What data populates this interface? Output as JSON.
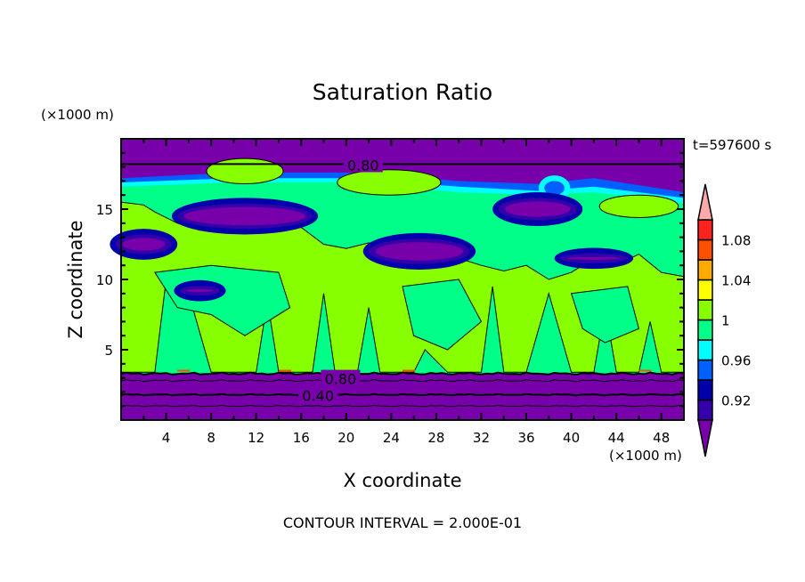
{
  "chart_data": {
    "type": "heatmap",
    "title": "Saturation Ratio",
    "xlabel": "X coordinate",
    "ylabel": "Z coordinate",
    "x_unit": "(×1000 m)",
    "y_unit": "(×1000 m)",
    "xlim": [
      0,
      50
    ],
    "ylim": [
      0,
      20
    ],
    "xticks": [
      4,
      8,
      12,
      16,
      20,
      24,
      28,
      32,
      36,
      40,
      44,
      48
    ],
    "yticks": [
      5,
      10,
      15
    ],
    "time_label": "t=597600 s",
    "footer": "CONTOUR INTERVAL = 2.000E-01",
    "contour_labels": [
      {
        "text": "0.80",
        "x": 21.5,
        "z": 18.2
      },
      {
        "text": "0.80",
        "x": 19.5,
        "z": 3.0
      },
      {
        "text": "0.40",
        "x": 17.5,
        "z": 1.8
      }
    ],
    "colorbar": {
      "levels": [
        0.9,
        0.92,
        0.94,
        0.96,
        0.98,
        1.0,
        1.02,
        1.04,
        1.06,
        1.08,
        1.1
      ],
      "tick_labels": [
        "0.92",
        "0.96",
        "1",
        "1.04",
        "1.08"
      ],
      "tick_values": [
        0.92,
        0.96,
        1.0,
        1.04,
        1.08
      ],
      "colors": [
        "#3300aa",
        "#0000aa",
        "#0060ff",
        "#00ffff",
        "#00ff88",
        "#88ff00",
        "#ffff00",
        "#ffaa00",
        "#ff5000",
        "#ff2020"
      ],
      "under_color": "#7700aa",
      "over_color": "#ffaaaa"
    }
  }
}
